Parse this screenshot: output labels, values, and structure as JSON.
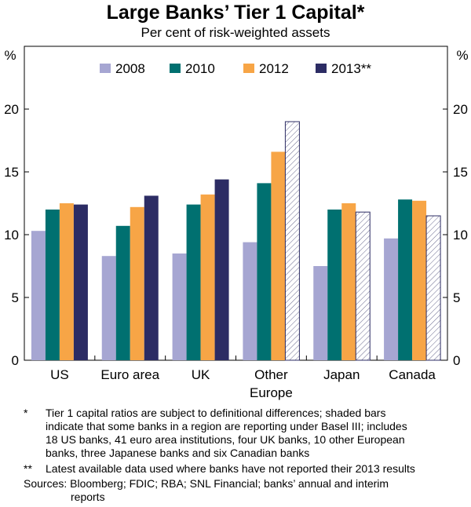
{
  "chart_data": {
    "type": "bar",
    "title": "Large Banks’ Tier 1 Capital*",
    "subtitle": "Per cent of risk-weighted assets",
    "ylabel_left": "%",
    "ylabel_right": "%",
    "ylim": [
      0,
      25
    ],
    "yticks": [
      0,
      5,
      10,
      15,
      20
    ],
    "categories": [
      [
        "US"
      ],
      [
        "Euro area"
      ],
      [
        "UK"
      ],
      [
        "Other",
        "Europe"
      ],
      [
        "Japan"
      ],
      [
        "Canada"
      ]
    ],
    "series": [
      {
        "name": "2008",
        "color": "#a6a6d2",
        "values": [
          10.3,
          8.3,
          8.5,
          9.4,
          7.5,
          9.7
        ]
      },
      {
        "name": "2010",
        "color": "#007070",
        "values": [
          12.0,
          10.7,
          12.4,
          14.1,
          12.0,
          12.8
        ]
      },
      {
        "name": "2012",
        "color": "#f7a546",
        "values": [
          12.5,
          12.2,
          13.2,
          16.6,
          12.5,
          12.7
        ]
      },
      {
        "name": "2013**",
        "color": "#2c2c64",
        "values": [
          12.4,
          13.1,
          14.4,
          19.0,
          11.8,
          11.5
        ]
      }
    ],
    "hatched_2013": [
      false,
      false,
      false,
      true,
      true,
      true
    ],
    "legend": "top-center",
    "grid": false
  },
  "notes": [
    {
      "mark": "*",
      "text": [
        "Tier 1 capital ratios are subject to definitional differences; shaded bars",
        "indicate that some banks in a region are reporting under Basel III; includes",
        "18 US banks, 41 euro area institutions, four UK banks, 10 other European",
        "banks, three Japanese banks and six Canadian banks"
      ]
    },
    {
      "mark": "**",
      "text": [
        "Latest available data used where banks have not reported their 2013 results"
      ]
    }
  ],
  "sources": [
    "Sources: Bloomberg; FDIC; RBA; SNL Financial; banks’ annual and interim",
    "reports"
  ]
}
